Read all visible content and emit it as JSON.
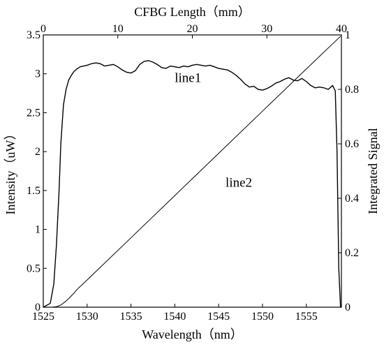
{
  "chart_data": {
    "type": "line",
    "x_bottom": {
      "label": "Wavelength（nm）",
      "range": [
        1525,
        1559
      ],
      "ticks": [
        1525,
        1530,
        1535,
        1540,
        1545,
        1550,
        1555
      ]
    },
    "x_top": {
      "label": "CFBG Length（mm）",
      "range": [
        0,
        40
      ],
      "ticks": [
        0,
        10,
        20,
        30,
        40
      ]
    },
    "y_left": {
      "label": "Intensity（uW）",
      "range": [
        0,
        3.5
      ],
      "ticks": [
        0,
        0.5,
        1,
        1.5,
        2,
        2.5,
        3,
        3.5
      ],
      "tick_labels": [
        "0",
        "0.5",
        "1",
        "1.5",
        "2",
        "2.5",
        "3",
        "3.5"
      ]
    },
    "y_right": {
      "label": "Integrated Signal",
      "range": [
        0,
        1
      ],
      "ticks": [
        0,
        0.2,
        0.4,
        0.6,
        0.8,
        1
      ],
      "tick_labels": [
        "0",
        "0.2",
        "0.4",
        "0.6",
        "0.8",
        "1"
      ]
    },
    "grid": false,
    "series": [
      {
        "name": "line1",
        "axis": "left",
        "color": "#000000",
        "x": [
          1525.0,
          1525.8,
          1526.2,
          1526.5,
          1526.8,
          1527.0,
          1527.3,
          1527.6,
          1527.9,
          1528.2,
          1528.5,
          1528.8,
          1529.2,
          1529.6,
          1530.0,
          1530.5,
          1531.0,
          1531.5,
          1532.0,
          1532.5,
          1533.0,
          1533.5,
          1534.0,
          1534.5,
          1535.0,
          1535.5,
          1536.0,
          1536.5,
          1537.0,
          1537.5,
          1538.0,
          1538.5,
          1539.0,
          1539.5,
          1540.0,
          1540.5,
          1541.0,
          1541.5,
          1542.0,
          1542.5,
          1543.0,
          1543.5,
          1544.0,
          1544.5,
          1545.0,
          1545.5,
          1546.0,
          1546.5,
          1547.0,
          1547.5,
          1548.0,
          1548.5,
          1549.0,
          1549.5,
          1550.0,
          1550.5,
          1551.0,
          1551.5,
          1552.0,
          1552.5,
          1553.0,
          1553.5,
          1554.0,
          1554.5,
          1555.0,
          1555.5,
          1556.0,
          1556.5,
          1557.0,
          1557.5,
          1558.0,
          1558.3,
          1558.5,
          1558.7,
          1558.9
        ],
        "y": [
          0.0,
          0.05,
          0.3,
          0.8,
          1.5,
          2.1,
          2.6,
          2.8,
          2.92,
          2.98,
          3.03,
          3.06,
          3.09,
          3.1,
          3.11,
          3.13,
          3.14,
          3.13,
          3.1,
          3.11,
          3.12,
          3.09,
          3.05,
          3.02,
          3.01,
          3.04,
          3.12,
          3.16,
          3.17,
          3.15,
          3.12,
          3.08,
          3.07,
          3.1,
          3.09,
          3.08,
          3.1,
          3.09,
          3.11,
          3.12,
          3.11,
          3.1,
          3.11,
          3.09,
          3.07,
          3.06,
          3.05,
          3.02,
          2.98,
          2.93,
          2.87,
          2.83,
          2.84,
          2.8,
          2.79,
          2.81,
          2.84,
          2.88,
          2.9,
          2.93,
          2.95,
          2.92,
          2.91,
          2.94,
          2.9,
          2.85,
          2.82,
          2.83,
          2.82,
          2.8,
          2.85,
          2.78,
          2.0,
          0.5,
          0.0
        ]
      },
      {
        "name": "line2",
        "axis": "right",
        "color": "#000000",
        "x": [
          1526.0,
          1526.5,
          1527.0,
          1527.5,
          1528.0,
          1528.5,
          1529.0,
          1530.0,
          1535.0,
          1540.0,
          1545.0,
          1550.0,
          1555.0,
          1558.9
        ],
        "y": [
          0.0,
          0.002,
          0.008,
          0.02,
          0.035,
          0.052,
          0.07,
          0.1,
          0.255,
          0.41,
          0.565,
          0.72,
          0.875,
          0.995
        ]
      }
    ],
    "annotations": [
      {
        "text": "line1",
        "x": 1541.5,
        "y": 2.95,
        "axis": "left"
      },
      {
        "text": "line2",
        "x": 1547.3,
        "y": 1.6,
        "axis": "left"
      }
    ]
  }
}
